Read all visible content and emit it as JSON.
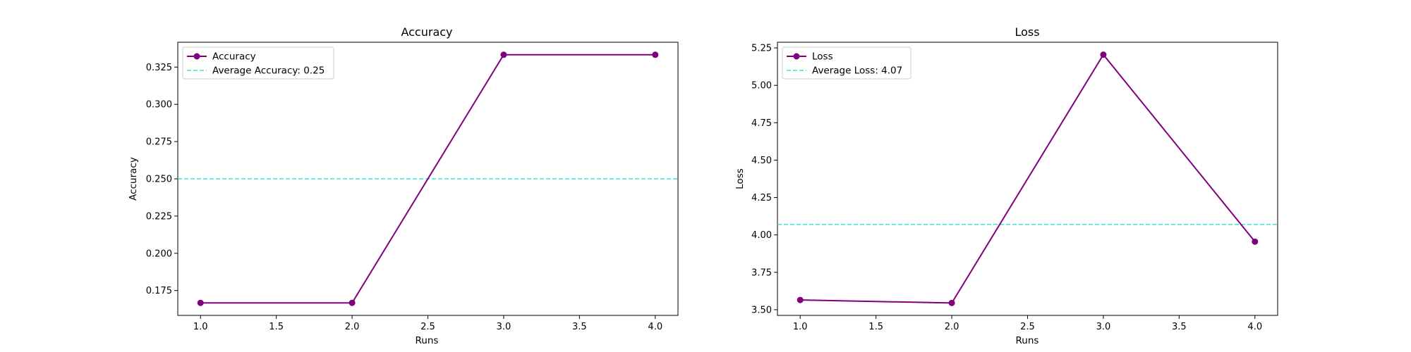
{
  "chart_data": [
    {
      "type": "line",
      "title": "Accuracy",
      "xlabel": "Runs",
      "ylabel": "Accuracy",
      "x": [
        1.0,
        2.0,
        3.0,
        4.0
      ],
      "series": [
        {
          "name": "Accuracy",
          "values": [
            0.1667,
            0.1667,
            0.3333,
            0.3333
          ],
          "color": "#800080",
          "marker": "circle"
        }
      ],
      "reference_lines": [
        {
          "name": "Average Accuracy: 0.25",
          "value": 0.25,
          "color": "#40e0d0",
          "style": "dashed"
        }
      ],
      "xlim": [
        0.85,
        4.15
      ],
      "ylim": [
        0.1583,
        0.3417
      ],
      "xticks": [
        1.0,
        1.5,
        2.0,
        2.5,
        3.0,
        3.5,
        4.0
      ],
      "xtick_labels": [
        "1.0",
        "1.5",
        "2.0",
        "2.5",
        "3.0",
        "3.5",
        "4.0"
      ],
      "yticks": [
        0.175,
        0.2,
        0.225,
        0.25,
        0.275,
        0.3,
        0.325
      ],
      "ytick_labels": [
        "0.175",
        "0.200",
        "0.225",
        "0.250",
        "0.275",
        "0.300",
        "0.325"
      ],
      "grid": false,
      "legend": "top-left"
    },
    {
      "type": "line",
      "title": "Loss",
      "xlabel": "Runs",
      "ylabel": "Loss",
      "x": [
        1.0,
        2.0,
        3.0,
        4.0
      ],
      "series": [
        {
          "name": "Loss",
          "values": [
            3.565,
            3.545,
            5.205,
            3.955
          ],
          "color": "#800080",
          "marker": "circle"
        }
      ],
      "reference_lines": [
        {
          "name": "Average Loss: 4.07",
          "value": 4.07,
          "color": "#40e0d0",
          "style": "dashed"
        }
      ],
      "xlim": [
        0.85,
        4.15
      ],
      "ylim": [
        3.462,
        5.288
      ],
      "xticks": [
        1.0,
        1.5,
        2.0,
        2.5,
        3.0,
        3.5,
        4.0
      ],
      "xtick_labels": [
        "1.0",
        "1.5",
        "2.0",
        "2.5",
        "3.0",
        "3.5",
        "4.0"
      ],
      "yticks": [
        3.5,
        3.75,
        4.0,
        4.25,
        4.5,
        4.75,
        5.0,
        5.25
      ],
      "ytick_labels": [
        "3.50",
        "3.75",
        "4.00",
        "4.25",
        "4.50",
        "4.75",
        "5.00",
        "5.25"
      ],
      "grid": false,
      "legend": "top-left"
    }
  ]
}
